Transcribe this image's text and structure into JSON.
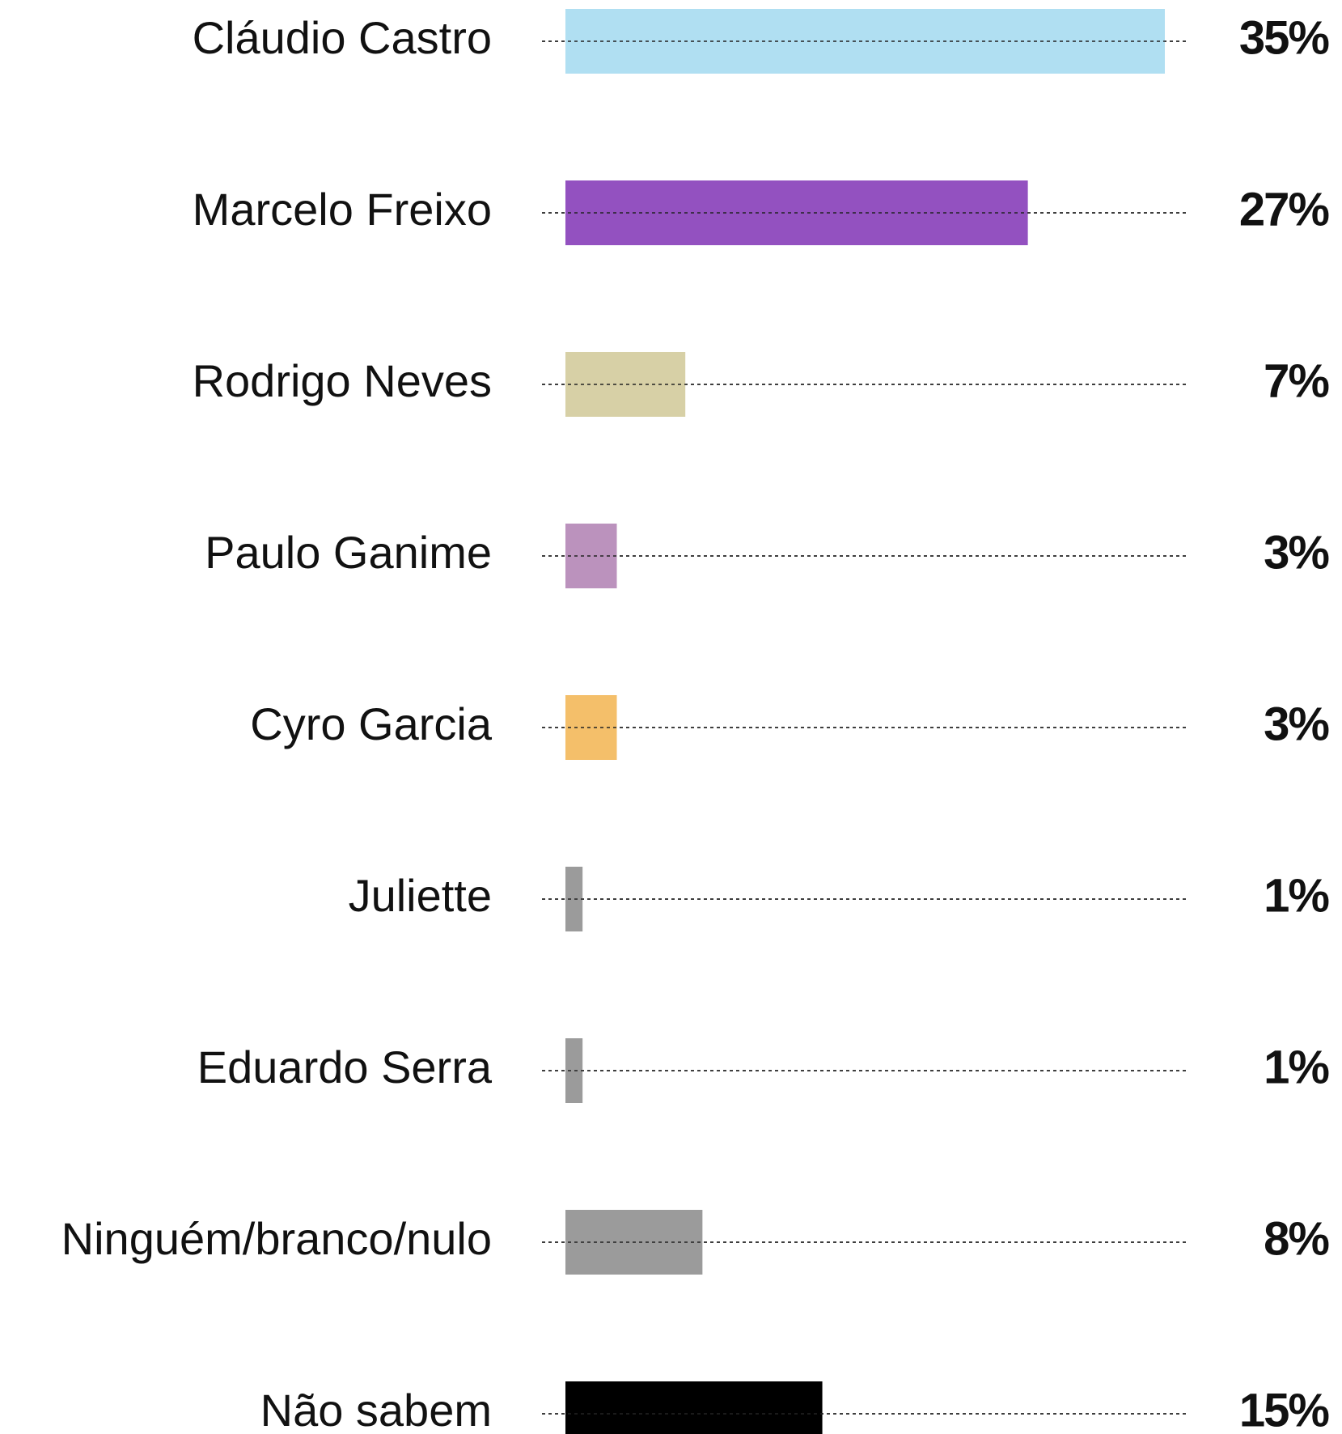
{
  "chart_data": {
    "type": "hbar",
    "categories": [
      "Cláudio Castro",
      "Marcelo Freixo",
      "Rodrigo Neves",
      "Paulo Ganime",
      "Cyro Garcia",
      "Juliette",
      "Eduardo Serra",
      "Ninguém/branco/nulo",
      "Não sabem"
    ],
    "values": [
      35,
      27,
      7,
      3,
      3,
      1,
      1,
      8,
      15
    ],
    "value_labels": [
      "35%",
      "27%",
      "7%",
      "3%",
      "3%",
      "1%",
      "1%",
      "8%",
      "15%"
    ],
    "colors": [
      "#b0dff2",
      "#9351c0",
      "#d7d0a6",
      "#bb92bd",
      "#f4bf6a",
      "#9b9b9b",
      "#9b9b9b",
      "#9b9b9b",
      "#000000"
    ]
  }
}
